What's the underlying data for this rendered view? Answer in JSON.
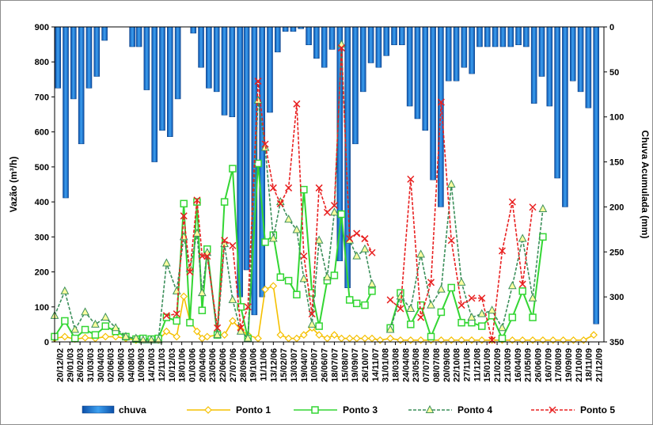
{
  "chart_data": {
    "type": "bar+line",
    "ylabel_left": "Vazão (m³/h)",
    "ylabel_right": "Chuva Acumulada (mm)",
    "ylim_left": [
      0,
      900
    ],
    "yticks_left": [
      "0",
      "100",
      "200",
      "300",
      "400",
      "500",
      "600",
      "700",
      "800",
      "900"
    ],
    "ylim_right_inverted": [
      0,
      350
    ],
    "yticks_right": [
      "0",
      "50",
      "100",
      "150",
      "200",
      "250",
      "300",
      "350"
    ],
    "x_tick_labels": [
      "20/12/02",
      "29/01/03",
      "26/02/03",
      "31/03/03",
      "30/04/03",
      "02/06/03",
      "30/06/03",
      "04/08/03",
      "10/09/03",
      "14/10/03",
      "12/11/03",
      "10/12/03",
      "18/01/06",
      "01/03/06",
      "20/04/06",
      "23/05/06",
      "22/06/06",
      "27/07/06",
      "28/09/06",
      "19/10/06",
      "11/11/06",
      "13/12/06",
      "15/02/07",
      "13/03/07",
      "19/04/07",
      "10/05/07",
      "26/06/07",
      "18/07/07",
      "15/08/07",
      "19/09/07",
      "26/10/07",
      "14/11/07",
      "31/01/08",
      "18/03/08",
      "24/04/08",
      "23/05/08",
      "07/07/08",
      "08/07/08",
      "20/09/08",
      "22/10/08",
      "27/11/08",
      "11/12/08",
      "15/01/09",
      "21/02/09",
      "21/03/09",
      "16/04/09",
      "21/05/09",
      "26/06/09",
      "16/07/09",
      "17/08/09",
      "19/09/09",
      "21/10/09",
      "18/11/09",
      "21/12/09"
    ],
    "series": [
      {
        "name": "chuva",
        "axis": "right",
        "kind": "bar",
        "color": "#2e8be0",
        "values": [
          68,
          190,
          80,
          130,
          68,
          55,
          15,
          0,
          0,
          22,
          22,
          70,
          150,
          115,
          122,
          80,
          0,
          7,
          45,
          68,
          72,
          98,
          100,
          300,
          270,
          320,
          300,
          95,
          28,
          5,
          5,
          2,
          20,
          35,
          45,
          25,
          260,
          290,
          130,
          72,
          40,
          45,
          32,
          20,
          20,
          88,
          102,
          115,
          170,
          200,
          60,
          60,
          45,
          52,
          22,
          22,
          22,
          22,
          22,
          20,
          22,
          85,
          55,
          88,
          168,
          200,
          60,
          72,
          90,
          330
        ],
        "bar_x": [
          0.3,
          1.0,
          1.7,
          2.4,
          3.1,
          3.8,
          4.5,
          5.4,
          6.2,
          7.0,
          7.6,
          8.3,
          9.0,
          9.7,
          10.4,
          11.1,
          11.8,
          12.5,
          13.2,
          13.9,
          14.6,
          15.3,
          16.0,
          16.7,
          17.3,
          18.0,
          18.7,
          19.4,
          20.1,
          20.8,
          21.5,
          22.2,
          22.9,
          23.6,
          24.3,
          25.0,
          25.7,
          26.4,
          27.1,
          27.8,
          28.5,
          29.2,
          29.9,
          30.6,
          31.3,
          32.0,
          32.7,
          33.4,
          34.1,
          34.8,
          35.5,
          36.2,
          36.9,
          37.6,
          38.3,
          39.0,
          39.7,
          40.4,
          41.1,
          41.8,
          42.5,
          43.2,
          43.9,
          44.6,
          45.3,
          46.0,
          46.7,
          47.4,
          48.1,
          48.8
        ]
      },
      {
        "name": "Ponto 1",
        "axis": "left",
        "kind": "line",
        "color": "#f5c000",
        "marker": "diamond",
        "points": [
          [
            0.0,
            10
          ],
          [
            1.0,
            15
          ],
          [
            2.0,
            8
          ],
          [
            3.0,
            12
          ],
          [
            4.0,
            10
          ],
          [
            5.0,
            15
          ],
          [
            6.0,
            15
          ],
          [
            7.0,
            10
          ],
          [
            8.0,
            5
          ],
          [
            8.7,
            10
          ],
          [
            9.5,
            5
          ],
          [
            10.2,
            5
          ],
          [
            11.0,
            30
          ],
          [
            12.0,
            15
          ],
          [
            12.7,
            130
          ],
          [
            13.3,
            60
          ],
          [
            14.0,
            30
          ],
          [
            14.5,
            10
          ],
          [
            15.0,
            15
          ],
          [
            16.0,
            20
          ],
          [
            16.7,
            20
          ],
          [
            17.5,
            60
          ],
          [
            18.3,
            35
          ],
          [
            19.0,
            20
          ],
          [
            20.0,
            10
          ],
          [
            20.7,
            150
          ],
          [
            21.5,
            160
          ],
          [
            22.2,
            20
          ],
          [
            23.0,
            10
          ],
          [
            23.8,
            10
          ],
          [
            24.5,
            20
          ],
          [
            25.3,
            40
          ],
          [
            26.0,
            20
          ],
          [
            26.8,
            10
          ],
          [
            27.5,
            20
          ],
          [
            28.2,
            10
          ],
          [
            29.0,
            10
          ],
          [
            29.7,
            10
          ],
          [
            30.5,
            10
          ],
          [
            31.2,
            10
          ],
          [
            32.0,
            5
          ],
          [
            33.0,
            10
          ],
          [
            34.0,
            5
          ],
          [
            35.0,
            5
          ],
          [
            36.0,
            5
          ],
          [
            37.0,
            5
          ],
          [
            38.0,
            5
          ],
          [
            39.0,
            5
          ],
          [
            40.0,
            5
          ],
          [
            41.0,
            5
          ],
          [
            42.0,
            5
          ],
          [
            43.0,
            5
          ],
          [
            44.0,
            5
          ],
          [
            45.0,
            5
          ],
          [
            46.0,
            5
          ],
          [
            47.0,
            5
          ],
          [
            48.0,
            5
          ],
          [
            49.0,
            5
          ],
          [
            50.0,
            5
          ],
          [
            51.0,
            5
          ],
          [
            52.0,
            5
          ],
          [
            53.0,
            20
          ]
        ]
      },
      {
        "name": "Ponto 3",
        "axis": "left",
        "kind": "line",
        "color": "#33d633",
        "marker": "square",
        "points": [
          [
            0.0,
            15
          ],
          [
            1.0,
            60
          ],
          [
            2.0,
            10
          ],
          [
            3.0,
            35
          ],
          [
            4.0,
            20
          ],
          [
            5.0,
            45
          ],
          [
            6.0,
            30
          ],
          [
            7.0,
            15
          ],
          [
            8.0,
            8
          ],
          [
            8.7,
            10
          ],
          [
            9.5,
            8
          ],
          [
            10.2,
            10
          ],
          [
            11.0,
            70
          ],
          [
            12.0,
            60
          ],
          [
            12.7,
            395
          ],
          [
            13.3,
            55
          ],
          [
            14.0,
            400
          ],
          [
            14.5,
            90
          ],
          [
            15.0,
            265
          ],
          [
            16.0,
            20
          ],
          [
            16.7,
            400
          ],
          [
            17.5,
            495
          ],
          [
            18.3,
            100
          ],
          [
            19.0,
            10
          ],
          [
            20.0,
            510
          ],
          [
            20.7,
            285
          ],
          [
            21.5,
            305
          ],
          [
            22.2,
            185
          ],
          [
            23.0,
            175
          ],
          [
            23.8,
            135
          ],
          [
            24.5,
            435
          ],
          [
            25.3,
            140
          ],
          [
            26.0,
            45
          ],
          [
            26.8,
            175
          ],
          [
            27.5,
            190
          ],
          [
            28.2,
            365
          ],
          [
            29.0,
            120
          ],
          [
            29.7,
            110
          ],
          [
            30.5,
            105
          ],
          [
            31.2,
            145
          ],
          [
            32.0,
            null
          ],
          [
            33.0,
            40
          ],
          [
            34.0,
            140
          ],
          [
            35.0,
            50
          ],
          [
            36.0,
            105
          ],
          [
            37.0,
            15
          ],
          [
            38.0,
            85
          ],
          [
            39.0,
            155
          ],
          [
            40.0,
            55
          ],
          [
            41.0,
            55
          ],
          [
            42.0,
            45
          ],
          [
            43.0,
            75
          ],
          [
            44.0,
            10
          ],
          [
            45.0,
            70
          ],
          [
            46.0,
            145
          ],
          [
            47.0,
            70
          ],
          [
            48.0,
            300
          ]
        ]
      },
      {
        "name": "Ponto 4",
        "axis": "left",
        "kind": "line",
        "color": "#3b8f5a",
        "marker": "triangle",
        "dashed": true,
        "points": [
          [
            0.0,
            75
          ],
          [
            1.0,
            145
          ],
          [
            2.0,
            35
          ],
          [
            3.0,
            85
          ],
          [
            4.0,
            50
          ],
          [
            5.0,
            70
          ],
          [
            6.0,
            40
          ],
          [
            7.0,
            15
          ],
          [
            8.0,
            10
          ],
          [
            8.7,
            5
          ],
          [
            9.5,
            5
          ],
          [
            10.2,
            5
          ],
          [
            11.0,
            225
          ],
          [
            12.0,
            145
          ],
          [
            12.7,
            300
          ],
          [
            13.3,
            210
          ],
          [
            14.0,
            310
          ],
          [
            14.5,
            140
          ],
          [
            15.0,
            255
          ],
          [
            16.0,
            20
          ],
          [
            16.7,
            280
          ],
          [
            17.5,
            120
          ],
          [
            18.3,
            30
          ],
          [
            19.0,
            10
          ],
          [
            20.0,
            690
          ],
          [
            20.7,
            555
          ],
          [
            21.5,
            295
          ],
          [
            22.2,
            400
          ],
          [
            23.0,
            350
          ],
          [
            23.8,
            320
          ],
          [
            24.5,
            180
          ],
          [
            25.3,
            50
          ],
          [
            26.0,
            290
          ],
          [
            26.8,
            185
          ],
          [
            27.5,
            370
          ],
          [
            28.2,
            850
          ],
          [
            29.0,
            290
          ],
          [
            29.7,
            245
          ],
          [
            30.5,
            265
          ],
          [
            31.2,
            165
          ],
          [
            32.0,
            null
          ],
          [
            33.0,
            35
          ],
          [
            34.0,
            130
          ],
          [
            35.0,
            95
          ],
          [
            36.0,
            250
          ],
          [
            37.0,
            105
          ],
          [
            38.0,
            150
          ],
          [
            39.0,
            450
          ],
          [
            40.0,
            170
          ],
          [
            41.0,
            70
          ],
          [
            42.0,
            80
          ],
          [
            43.0,
            90
          ],
          [
            44.0,
            40
          ],
          [
            45.0,
            160
          ],
          [
            46.0,
            295
          ],
          [
            47.0,
            125
          ],
          [
            48.0,
            380
          ]
        ]
      },
      {
        "name": "Ponto 5",
        "axis": "left",
        "kind": "line",
        "color": "#e82020",
        "marker": "x",
        "dashed": true,
        "points": [
          [
            0.0,
            null
          ],
          [
            11.0,
            75
          ],
          [
            12.0,
            80
          ],
          [
            12.7,
            360
          ],
          [
            13.3,
            200
          ],
          [
            14.0,
            405
          ],
          [
            14.5,
            245
          ],
          [
            15.0,
            245
          ],
          [
            16.0,
            40
          ],
          [
            16.7,
            290
          ],
          [
            17.5,
            275
          ],
          [
            18.3,
            40
          ],
          [
            19.0,
            100
          ],
          [
            20.0,
            745
          ],
          [
            20.7,
            565
          ],
          [
            21.5,
            440
          ],
          [
            22.2,
            395
          ],
          [
            23.0,
            440
          ],
          [
            23.8,
            680
          ],
          [
            24.5,
            245
          ],
          [
            25.3,
            80
          ],
          [
            26.0,
            440
          ],
          [
            26.8,
            370
          ],
          [
            27.5,
            390
          ],
          [
            28.2,
            840
          ],
          [
            29.0,
            295
          ],
          [
            29.7,
            310
          ],
          [
            30.5,
            295
          ],
          [
            31.2,
            255
          ],
          [
            32.0,
            null
          ],
          [
            33.0,
            120
          ],
          [
            34.0,
            95
          ],
          [
            35.0,
            465
          ],
          [
            36.0,
            70
          ],
          [
            37.0,
            170
          ],
          [
            38.0,
            685
          ],
          [
            39.0,
            290
          ],
          [
            40.0,
            105
          ],
          [
            41.0,
            125
          ],
          [
            42.0,
            125
          ],
          [
            43.0,
            5
          ],
          [
            44.0,
            260
          ],
          [
            45.0,
            400
          ],
          [
            46.0,
            165
          ],
          [
            47.0,
            385
          ]
        ]
      }
    ],
    "legend": [
      "chuva",
      "Ponto 1",
      "Ponto 3",
      "Ponto 4",
      "Ponto 5"
    ],
    "legend_placement": "bottom",
    "grid": false
  }
}
